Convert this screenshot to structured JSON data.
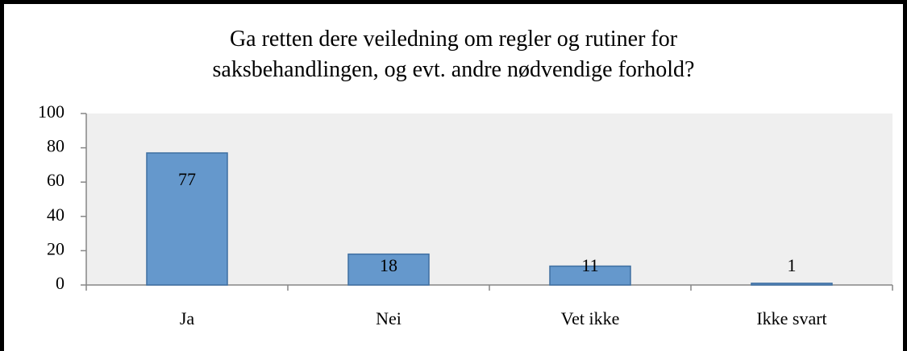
{
  "chart_data": {
    "type": "bar",
    "title": "Ga retten dere veiledning om regler og rutiner for saksbehandlingen, og evt. andre nødvendige forhold?",
    "categories": [
      "Ja",
      "Nei",
      "Vet ikke",
      "Ikke svart"
    ],
    "values": [
      77,
      18,
      11,
      1
    ],
    "color": "#6598cc",
    "ylim": [
      0,
      100
    ],
    "yticks": [
      0,
      20,
      40,
      60,
      80,
      100
    ],
    "grid": false
  }
}
